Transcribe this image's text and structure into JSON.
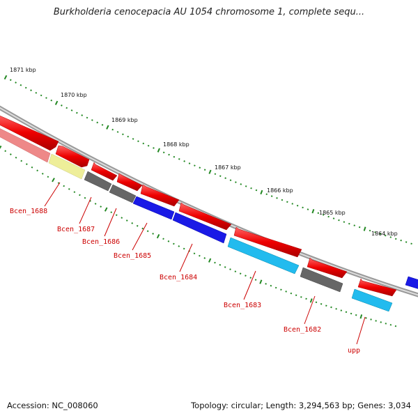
{
  "title": "Burkholderia cenocepacia AU 1054 chromosome 1, complete sequ...",
  "footer": {
    "accession": "Accession: NC_008060",
    "summary": "Topology: circular; Length: 3,294,563 bp; Genes: 3,034"
  },
  "colors": {
    "forward_gene": "#ee0000",
    "reverse_blue": "#1a1ae6",
    "reverse_cyan": "#22bbee",
    "reverse_gray": "#666666",
    "pink": "#ee8888",
    "yellow": "#eeee99",
    "backbone": "#888888",
    "ruler_tick": "#228822",
    "label": "#cc0000"
  },
  "ruler": {
    "unit": "kbp",
    "ticks": [
      {
        "label": "1871 kbp",
        "kbp": 1871
      },
      {
        "label": "1870 kbp",
        "kbp": 1870
      },
      {
        "label": "1869 kbp",
        "kbp": 1869
      },
      {
        "label": "1868 kbp",
        "kbp": 1868
      },
      {
        "label": "1867 kbp",
        "kbp": 1867
      },
      {
        "label": "1866 kbp",
        "kbp": 1866
      },
      {
        "label": "1865 kbp",
        "kbp": 1865
      },
      {
        "label": "1864 kbp",
        "kbp": 1864
      }
    ]
  },
  "gene_labels": [
    "Bcen_1688",
    "Bcen_1687",
    "Bcen_1686",
    "Bcen_1685",
    "Bcen_1684",
    "Bcen_1683",
    "Bcen_1682",
    "upp"
  ]
}
